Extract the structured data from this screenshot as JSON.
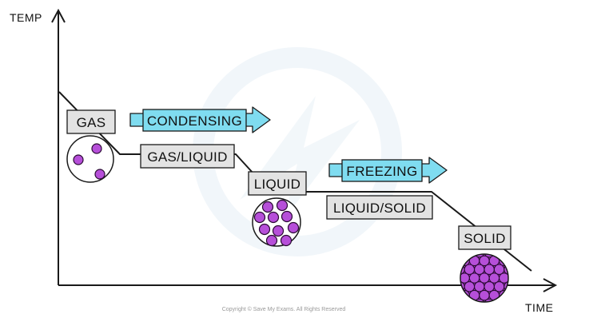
{
  "axes": {
    "y_label": "TEMP",
    "x_label": "TIME"
  },
  "labels": {
    "gas": "GAS",
    "gas_liquid": "GAS/LIQUID",
    "liquid": "LIQUID",
    "liquid_solid": "LIQUID/SOLID",
    "solid": "SOLID"
  },
  "processes": {
    "condensing": "CONDENSING",
    "freezing": "FREEZING"
  },
  "copyright": "Copyright © Save My Exams. All Rights Reserved",
  "colors": {
    "label_box_fill": "#e3e3e3",
    "arrow_fill": "#7fdcf0",
    "particle_fill": "#b64fd9",
    "particle_stroke": "#2a0a33",
    "line": "#1a1a1a",
    "watermark": "#eaf2f8"
  }
}
